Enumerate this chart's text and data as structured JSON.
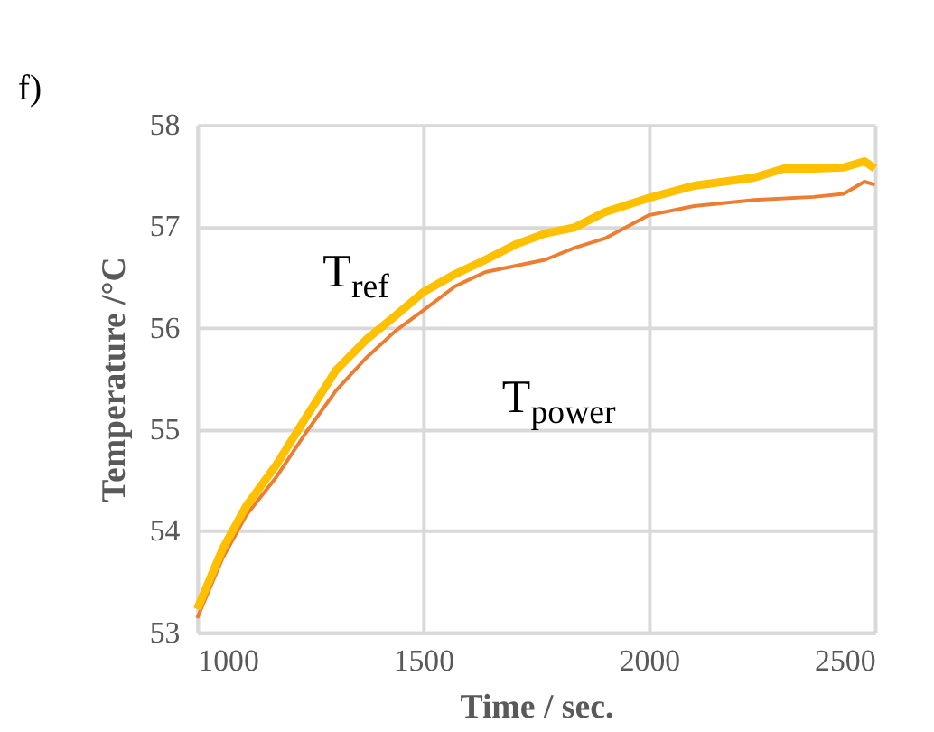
{
  "chart_data": {
    "type": "line",
    "xlabel": "Time / sec.",
    "ylabel": "Temperature  /°C",
    "x": [
      1000,
      1056,
      1108,
      1175,
      1241,
      1307,
      1373,
      1439,
      1500,
      1571,
      1638,
      1704,
      1770,
      1836,
      1902,
      2000,
      2100,
      2233,
      2299,
      2365,
      2431,
      2477,
      2500
    ],
    "series": [
      {
        "color": "#ffc000",
        "values": [
          53.23,
          53.82,
          54.24,
          54.65,
          55.12,
          55.58,
          55.88,
          56.12,
          56.35,
          56.53,
          56.67,
          56.82,
          56.93,
          56.99,
          57.14,
          57.28,
          57.4,
          57.48,
          57.57,
          57.57,
          57.58,
          57.64,
          57.57
        ]
      },
      {
        "color": "#ed7d31",
        "x": [
          1000,
          1056,
          1108,
          1175,
          1241,
          1307,
          1373,
          1439,
          1500,
          1571,
          1638,
          1704,
          1770,
          1836,
          1902,
          2000,
          2100,
          2233,
          2365,
          2431,
          2477,
          2500
        ],
        "values": [
          53.14,
          53.73,
          54.15,
          54.53,
          54.97,
          55.38,
          55.7,
          55.97,
          56.17,
          56.41,
          56.55,
          56.61,
          56.67,
          56.79,
          56.88,
          57.11,
          57.2,
          57.26,
          57.29,
          57.32,
          57.44,
          57.41
        ]
      }
    ],
    "xlim": [
      1000,
      2500
    ],
    "xticks": [
      1000,
      1500,
      2000,
      2500
    ],
    "ylim": [
      53,
      58
    ],
    "yticks": [
      53,
      54,
      55,
      56,
      57,
      58
    ],
    "grid": true,
    "marker": "none",
    "line_style": "solid",
    "annotations": [
      "f)",
      "T$_{ref}$",
      "T$_{power}$"
    ]
  }
}
